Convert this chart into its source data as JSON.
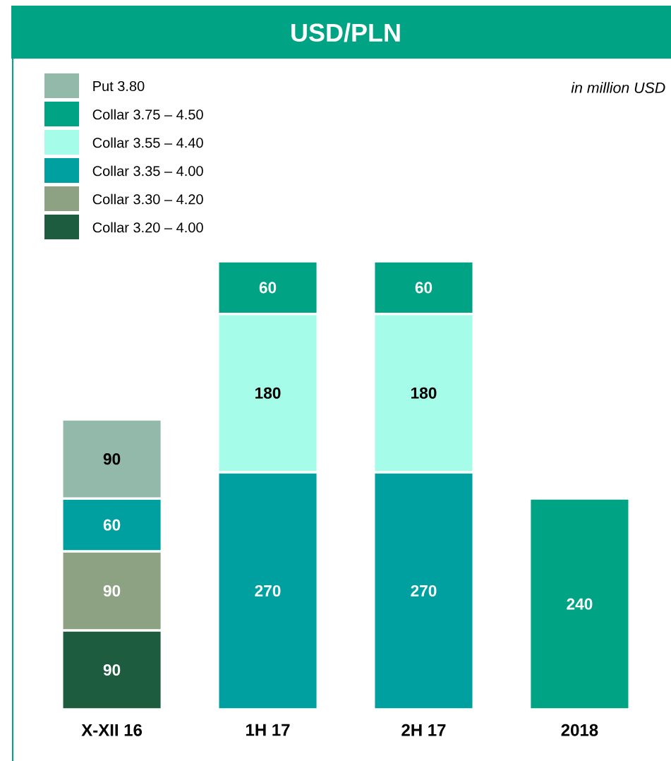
{
  "chart_data": {
    "type": "bar",
    "title": "USD/PLN",
    "annotations": [
      "in million USD"
    ],
    "categories": [
      "X-XII 16",
      "1H 17",
      "2H 17",
      "2018"
    ],
    "stacked": true,
    "data_labels": true,
    "legend": "top left",
    "series": [
      {
        "name": "Collar 3.20 – 4.00",
        "color": "#1e5c40",
        "values": [
          90,
          null,
          null,
          null
        ]
      },
      {
        "name": "Collar 3.30 – 4.20",
        "color": "#8da183",
        "values": [
          90,
          null,
          null,
          null
        ]
      },
      {
        "name": "Collar 3.35 – 4.00",
        "color": "#00a0a0",
        "values": [
          60,
          270,
          270,
          null
        ]
      },
      {
        "name": "Collar 3.55 – 4.40",
        "color": "#a5fde9",
        "values": [
          null,
          180,
          180,
          null
        ]
      },
      {
        "name": "Collar 3.75 – 4.50",
        "color": "#00a383",
        "values": [
          null,
          60,
          60,
          240
        ]
      },
      {
        "name": "Put 3.80",
        "color": "#93b9aa",
        "values": [
          90,
          null,
          null,
          null
        ]
      }
    ]
  }
}
